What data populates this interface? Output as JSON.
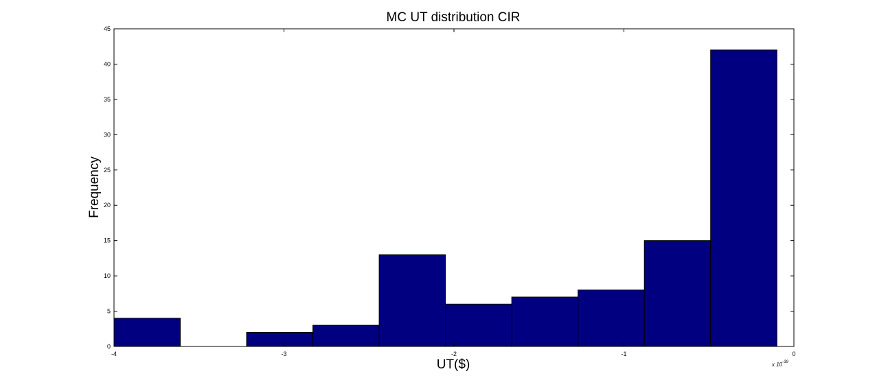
{
  "chart_data": {
    "type": "bar",
    "title": "MC UT distribution CIR",
    "xlabel": "UT($)",
    "ylabel": "Frequency",
    "x_multiplier_label": "x 10",
    "x_multiplier_exponent": "-39",
    "xlim": [
      -4,
      0
    ],
    "ylim": [
      0,
      45
    ],
    "xticks": [
      -4,
      -3,
      -2,
      -1,
      0
    ],
    "xtick_labels": [
      "-4",
      "-3",
      "-2",
      "-1",
      "0"
    ],
    "yticks": [
      0,
      5,
      10,
      15,
      20,
      25,
      30,
      35,
      40,
      45
    ],
    "ytick_labels": [
      "0",
      "5",
      "10",
      "15",
      "20",
      "25",
      "30",
      "35",
      "40",
      "45"
    ],
    "bar_color": "#000080",
    "bar_edge_color": "#000000",
    "grid": false,
    "bins": [
      {
        "x0": -4.0,
        "x1": -3.61,
        "value": 4
      },
      {
        "x0": -3.61,
        "x1": -3.22,
        "value": 0
      },
      {
        "x0": -3.22,
        "x1": -2.83,
        "value": 2
      },
      {
        "x0": -2.83,
        "x1": -2.44,
        "value": 3
      },
      {
        "x0": -2.44,
        "x1": -2.05,
        "value": 13
      },
      {
        "x0": -2.05,
        "x1": -1.66,
        "value": 6
      },
      {
        "x0": -1.66,
        "x1": -1.27,
        "value": 7
      },
      {
        "x0": -1.27,
        "x1": -0.88,
        "value": 8
      },
      {
        "x0": -0.88,
        "x1": -0.49,
        "value": 15
      },
      {
        "x0": -0.49,
        "x1": -0.1,
        "value": 42
      }
    ]
  }
}
